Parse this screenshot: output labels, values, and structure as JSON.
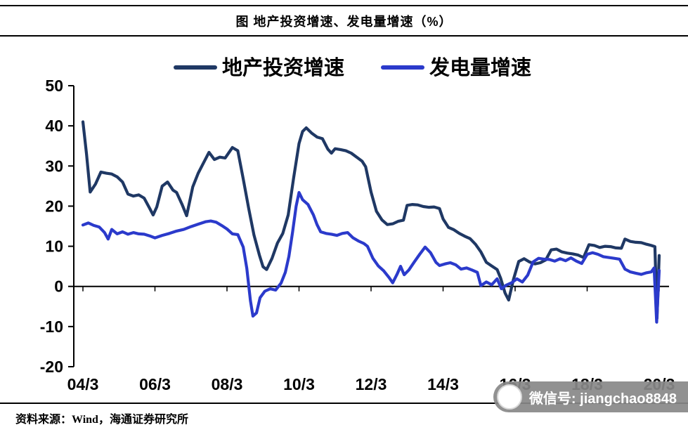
{
  "title": "图 地产投资增速、发电量增速（%）",
  "source": "资料来源：Wind，海通证券研究所",
  "watermark": "微信号: jiangchao8848",
  "colors": {
    "investment": "#1f3864",
    "power": "#2b3acb",
    "axis": "#000000"
  },
  "chart_data": {
    "type": "line",
    "title": "图 地产投资增速、发电量增速（%）",
    "xlabel": "",
    "ylabel": "%",
    "grid": false,
    "legend_position": "top-center",
    "x_axis": {
      "ticks": [
        "04/3",
        "06/3",
        "08/3",
        "10/3",
        "12/3",
        "14/3",
        "16/3",
        "18/3",
        "20/3"
      ],
      "note": "t = years since 2004/3, range 0 to 16"
    },
    "y_axis": {
      "ticks": [
        50,
        40,
        30,
        20,
        10,
        0,
        -10,
        -20
      ],
      "range": [
        -20,
        50
      ]
    },
    "series": [
      {
        "name": "地产投资增速",
        "key": "investment-growth-line",
        "color": "#1f3864",
        "points": [
          [
            0,
            41
          ],
          [
            0.1,
            33
          ],
          [
            0.2,
            23.5
          ],
          [
            0.35,
            25.5
          ],
          [
            0.5,
            28.5
          ],
          [
            0.65,
            28.2
          ],
          [
            0.8,
            28
          ],
          [
            0.95,
            27.3
          ],
          [
            1.1,
            26
          ],
          [
            1.25,
            23
          ],
          [
            1.4,
            22.5
          ],
          [
            1.55,
            22.8
          ],
          [
            1.7,
            22
          ],
          [
            1.85,
            19.5
          ],
          [
            1.95,
            17.8
          ],
          [
            2.05,
            19.8
          ],
          [
            2.2,
            25
          ],
          [
            2.35,
            26
          ],
          [
            2.5,
            24
          ],
          [
            2.6,
            23.4
          ],
          [
            2.75,
            20.5
          ],
          [
            2.88,
            17.6
          ],
          [
            3.05,
            24.8
          ],
          [
            3.2,
            28.2
          ],
          [
            3.35,
            30.8
          ],
          [
            3.5,
            33.4
          ],
          [
            3.65,
            31.6
          ],
          [
            3.8,
            32.2
          ],
          [
            3.95,
            32
          ],
          [
            4.15,
            34.6
          ],
          [
            4.3,
            33.8
          ],
          [
            4.45,
            26.8
          ],
          [
            4.6,
            19.5
          ],
          [
            4.75,
            12.8
          ],
          [
            4.9,
            7.8
          ],
          [
            5,
            4.9
          ],
          [
            5.1,
            4.2
          ],
          [
            5.25,
            7
          ],
          [
            5.4,
            10.8
          ],
          [
            5.55,
            13.2
          ],
          [
            5.7,
            17.8
          ],
          [
            5.85,
            27
          ],
          [
            6,
            35.6
          ],
          [
            6.1,
            38.6
          ],
          [
            6.2,
            39.5
          ],
          [
            6.35,
            38.2
          ],
          [
            6.5,
            37.2
          ],
          [
            6.65,
            36.8
          ],
          [
            6.8,
            34.2
          ],
          [
            6.9,
            33.2
          ],
          [
            7,
            34.3
          ],
          [
            7.15,
            34.1
          ],
          [
            7.3,
            33.8
          ],
          [
            7.45,
            33.2
          ],
          [
            7.6,
            32.2
          ],
          [
            7.75,
            31.2
          ],
          [
            7.85,
            29.8
          ],
          [
            8,
            23.5
          ],
          [
            8.15,
            18.7
          ],
          [
            8.3,
            16.6
          ],
          [
            8.45,
            15.4
          ],
          [
            8.6,
            15.6
          ],
          [
            8.75,
            16.2
          ],
          [
            8.9,
            16.5
          ],
          [
            9,
            20.2
          ],
          [
            9.15,
            20.4
          ],
          [
            9.3,
            20.3
          ],
          [
            9.45,
            19.9
          ],
          [
            9.6,
            19.7
          ],
          [
            9.75,
            19.8
          ],
          [
            9.9,
            19.4
          ],
          [
            10,
            16.8
          ],
          [
            10.15,
            14.7
          ],
          [
            10.3,
            14.1
          ],
          [
            10.45,
            13.2
          ],
          [
            10.6,
            12.5
          ],
          [
            10.75,
            11.9
          ],
          [
            10.9,
            10.5
          ],
          [
            11.05,
            8.6
          ],
          [
            11.2,
            6
          ],
          [
            11.35,
            5.1
          ],
          [
            11.5,
            4.2
          ],
          [
            11.6,
            2
          ],
          [
            11.72,
            -1.6
          ],
          [
            11.82,
            -3.4
          ],
          [
            11.95,
            1.6
          ],
          [
            12.1,
            6.2
          ],
          [
            12.25,
            6.9
          ],
          [
            12.4,
            6.1
          ],
          [
            12.55,
            5.6
          ],
          [
            12.7,
            5.9
          ],
          [
            12.85,
            6.6
          ],
          [
            13,
            9.1
          ],
          [
            13.15,
            9.3
          ],
          [
            13.3,
            8.6
          ],
          [
            13.45,
            8.3
          ],
          [
            13.6,
            8.1
          ],
          [
            13.75,
            7.8
          ],
          [
            13.9,
            7.2
          ],
          [
            14.05,
            10.4
          ],
          [
            14.2,
            10.2
          ],
          [
            14.35,
            9.7
          ],
          [
            14.5,
            10
          ],
          [
            14.65,
            9.9
          ],
          [
            14.8,
            9.6
          ],
          [
            14.95,
            9.5
          ],
          [
            15.05,
            11.8
          ],
          [
            15.2,
            11.2
          ],
          [
            15.35,
            11
          ],
          [
            15.5,
            10.9
          ],
          [
            15.65,
            10.5
          ],
          [
            15.78,
            10.2
          ],
          [
            15.88,
            9.9
          ],
          [
            15.94,
            -7.9
          ],
          [
            16,
            7.7
          ]
        ]
      },
      {
        "name": "发电量增速",
        "key": "power-generation-line",
        "color": "#2b3acb",
        "points": [
          [
            0,
            15.3
          ],
          [
            0.15,
            15.8
          ],
          [
            0.3,
            15.2
          ],
          [
            0.45,
            14.8
          ],
          [
            0.6,
            13.4
          ],
          [
            0.7,
            11.8
          ],
          [
            0.8,
            14.2
          ],
          [
            0.95,
            13.1
          ],
          [
            1.1,
            13.6
          ],
          [
            1.25,
            13
          ],
          [
            1.4,
            13.4
          ],
          [
            1.55,
            13.1
          ],
          [
            1.7,
            13
          ],
          [
            1.85,
            12.6
          ],
          [
            2,
            12.1
          ],
          [
            2.2,
            12.7
          ],
          [
            2.4,
            13.2
          ],
          [
            2.6,
            13.8
          ],
          [
            2.8,
            14.2
          ],
          [
            3,
            14.9
          ],
          [
            3.2,
            15.5
          ],
          [
            3.4,
            16.1
          ],
          [
            3.55,
            16.3
          ],
          [
            3.7,
            16
          ],
          [
            3.85,
            15.2
          ],
          [
            4,
            14.3
          ],
          [
            4.15,
            13.1
          ],
          [
            4.3,
            12.9
          ],
          [
            4.45,
            9.8
          ],
          [
            4.55,
            4.5
          ],
          [
            4.65,
            -3.5
          ],
          [
            4.72,
            -7.4
          ],
          [
            4.82,
            -6.6
          ],
          [
            4.92,
            -2.8
          ],
          [
            5.05,
            -1.2
          ],
          [
            5.2,
            -0.6
          ],
          [
            5.35,
            -0.9
          ],
          [
            5.5,
            0.8
          ],
          [
            5.62,
            3.5
          ],
          [
            5.72,
            7.5
          ],
          [
            5.82,
            13.5
          ],
          [
            5.92,
            20
          ],
          [
            6,
            23.4
          ],
          [
            6.1,
            21.6
          ],
          [
            6.25,
            20.4
          ],
          [
            6.4,
            17.8
          ],
          [
            6.5,
            15.4
          ],
          [
            6.6,
            13.6
          ],
          [
            6.75,
            13.2
          ],
          [
            6.9,
            13
          ],
          [
            7.05,
            12.7
          ],
          [
            7.2,
            13.2
          ],
          [
            7.35,
            13.4
          ],
          [
            7.5,
            12.1
          ],
          [
            7.65,
            11.3
          ],
          [
            7.8,
            10.7
          ],
          [
            7.9,
            10
          ],
          [
            8.05,
            7
          ],
          [
            8.2,
            5.1
          ],
          [
            8.35,
            3.9
          ],
          [
            8.5,
            2.2
          ],
          [
            8.6,
            0.9
          ],
          [
            8.72,
            3
          ],
          [
            8.82,
            5
          ],
          [
            8.92,
            2.9
          ],
          [
            9.05,
            4.1
          ],
          [
            9.2,
            6.1
          ],
          [
            9.35,
            8
          ],
          [
            9.5,
            9.8
          ],
          [
            9.65,
            8.4
          ],
          [
            9.8,
            6
          ],
          [
            9.9,
            5.2
          ],
          [
            10.05,
            5.6
          ],
          [
            10.2,
            5.9
          ],
          [
            10.35,
            5.4
          ],
          [
            10.5,
            4.3
          ],
          [
            10.65,
            4.6
          ],
          [
            10.8,
            4.1
          ],
          [
            10.95,
            3.5
          ],
          [
            11.05,
            0.2
          ],
          [
            11.2,
            1.1
          ],
          [
            11.35,
            0.4
          ],
          [
            11.5,
            1.9
          ],
          [
            11.62,
            -0.6
          ],
          [
            11.75,
            0.3
          ],
          [
            11.9,
            0.9
          ],
          [
            12.05,
            1.9
          ],
          [
            12.2,
            1.1
          ],
          [
            12.35,
            2.8
          ],
          [
            12.5,
            6.1
          ],
          [
            12.65,
            7
          ],
          [
            12.8,
            6.8
          ],
          [
            12.95,
            6.7
          ],
          [
            13.1,
            6.3
          ],
          [
            13.25,
            6.9
          ],
          [
            13.4,
            6.4
          ],
          [
            13.55,
            7.1
          ],
          [
            13.7,
            6.3
          ],
          [
            13.85,
            5.7
          ],
          [
            14,
            8
          ],
          [
            14.15,
            8.4
          ],
          [
            14.3,
            8
          ],
          [
            14.45,
            7.4
          ],
          [
            14.6,
            7.2
          ],
          [
            14.75,
            7
          ],
          [
            14.9,
            6.8
          ],
          [
            15.05,
            4.3
          ],
          [
            15.2,
            3.6
          ],
          [
            15.35,
            3.3
          ],
          [
            15.5,
            3
          ],
          [
            15.65,
            3.4
          ],
          [
            15.78,
            3.6
          ],
          [
            15.86,
            4.6
          ],
          [
            15.93,
            -8.9
          ],
          [
            16,
            4
          ]
        ]
      }
    ]
  }
}
